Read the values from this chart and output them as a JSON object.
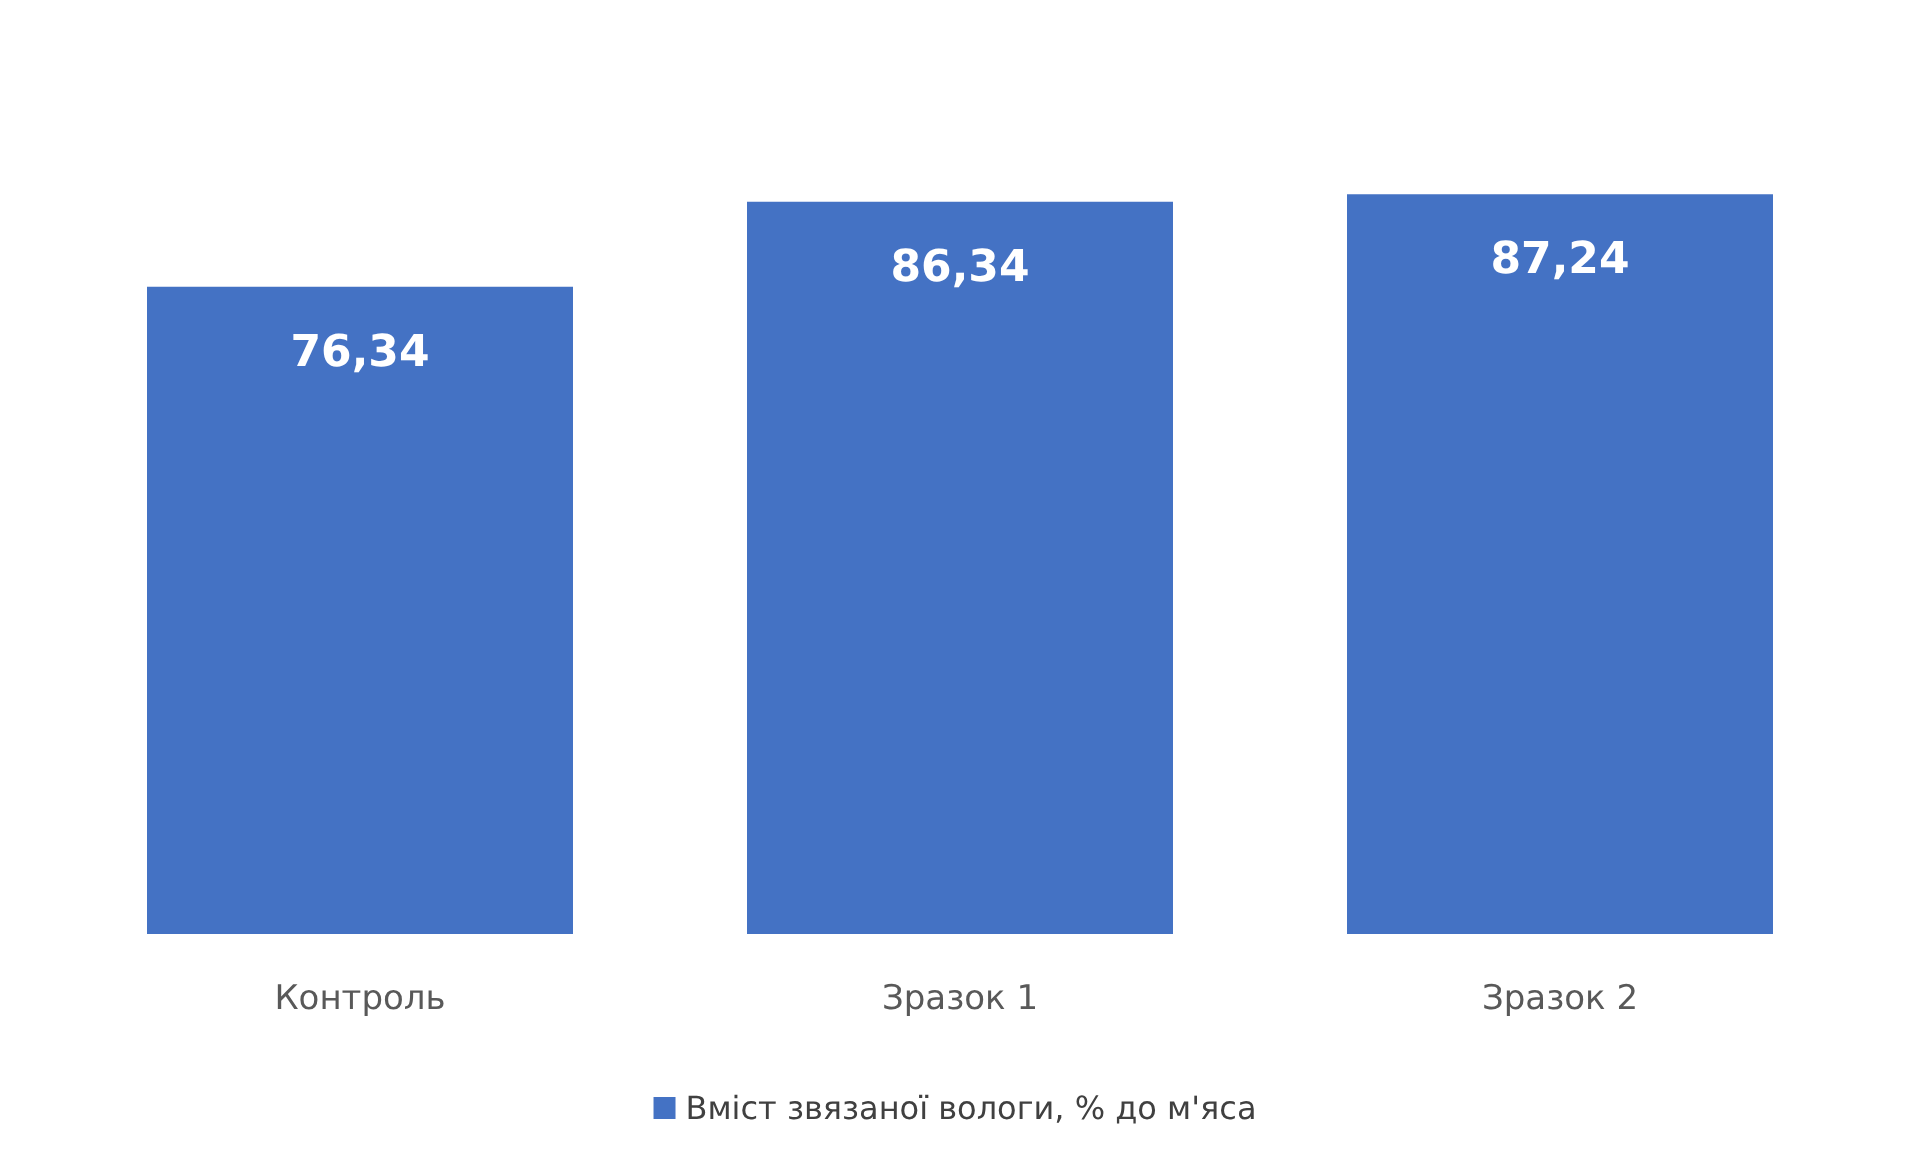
{
  "chart_data": {
    "type": "bar",
    "categories": [
      "Контроль",
      "Зразок 1",
      "Зразок 2"
    ],
    "series": [
      {
        "name": "Вміст звязаної вологи, % до м'яса",
        "color": "#4472c4",
        "values": [
          76.34,
          86.34,
          87.24
        ],
        "value_labels": [
          "76,34",
          "86,34",
          "87,24"
        ]
      }
    ],
    "tick_labels": "x",
    "grid": false,
    "legend": "bottom"
  }
}
